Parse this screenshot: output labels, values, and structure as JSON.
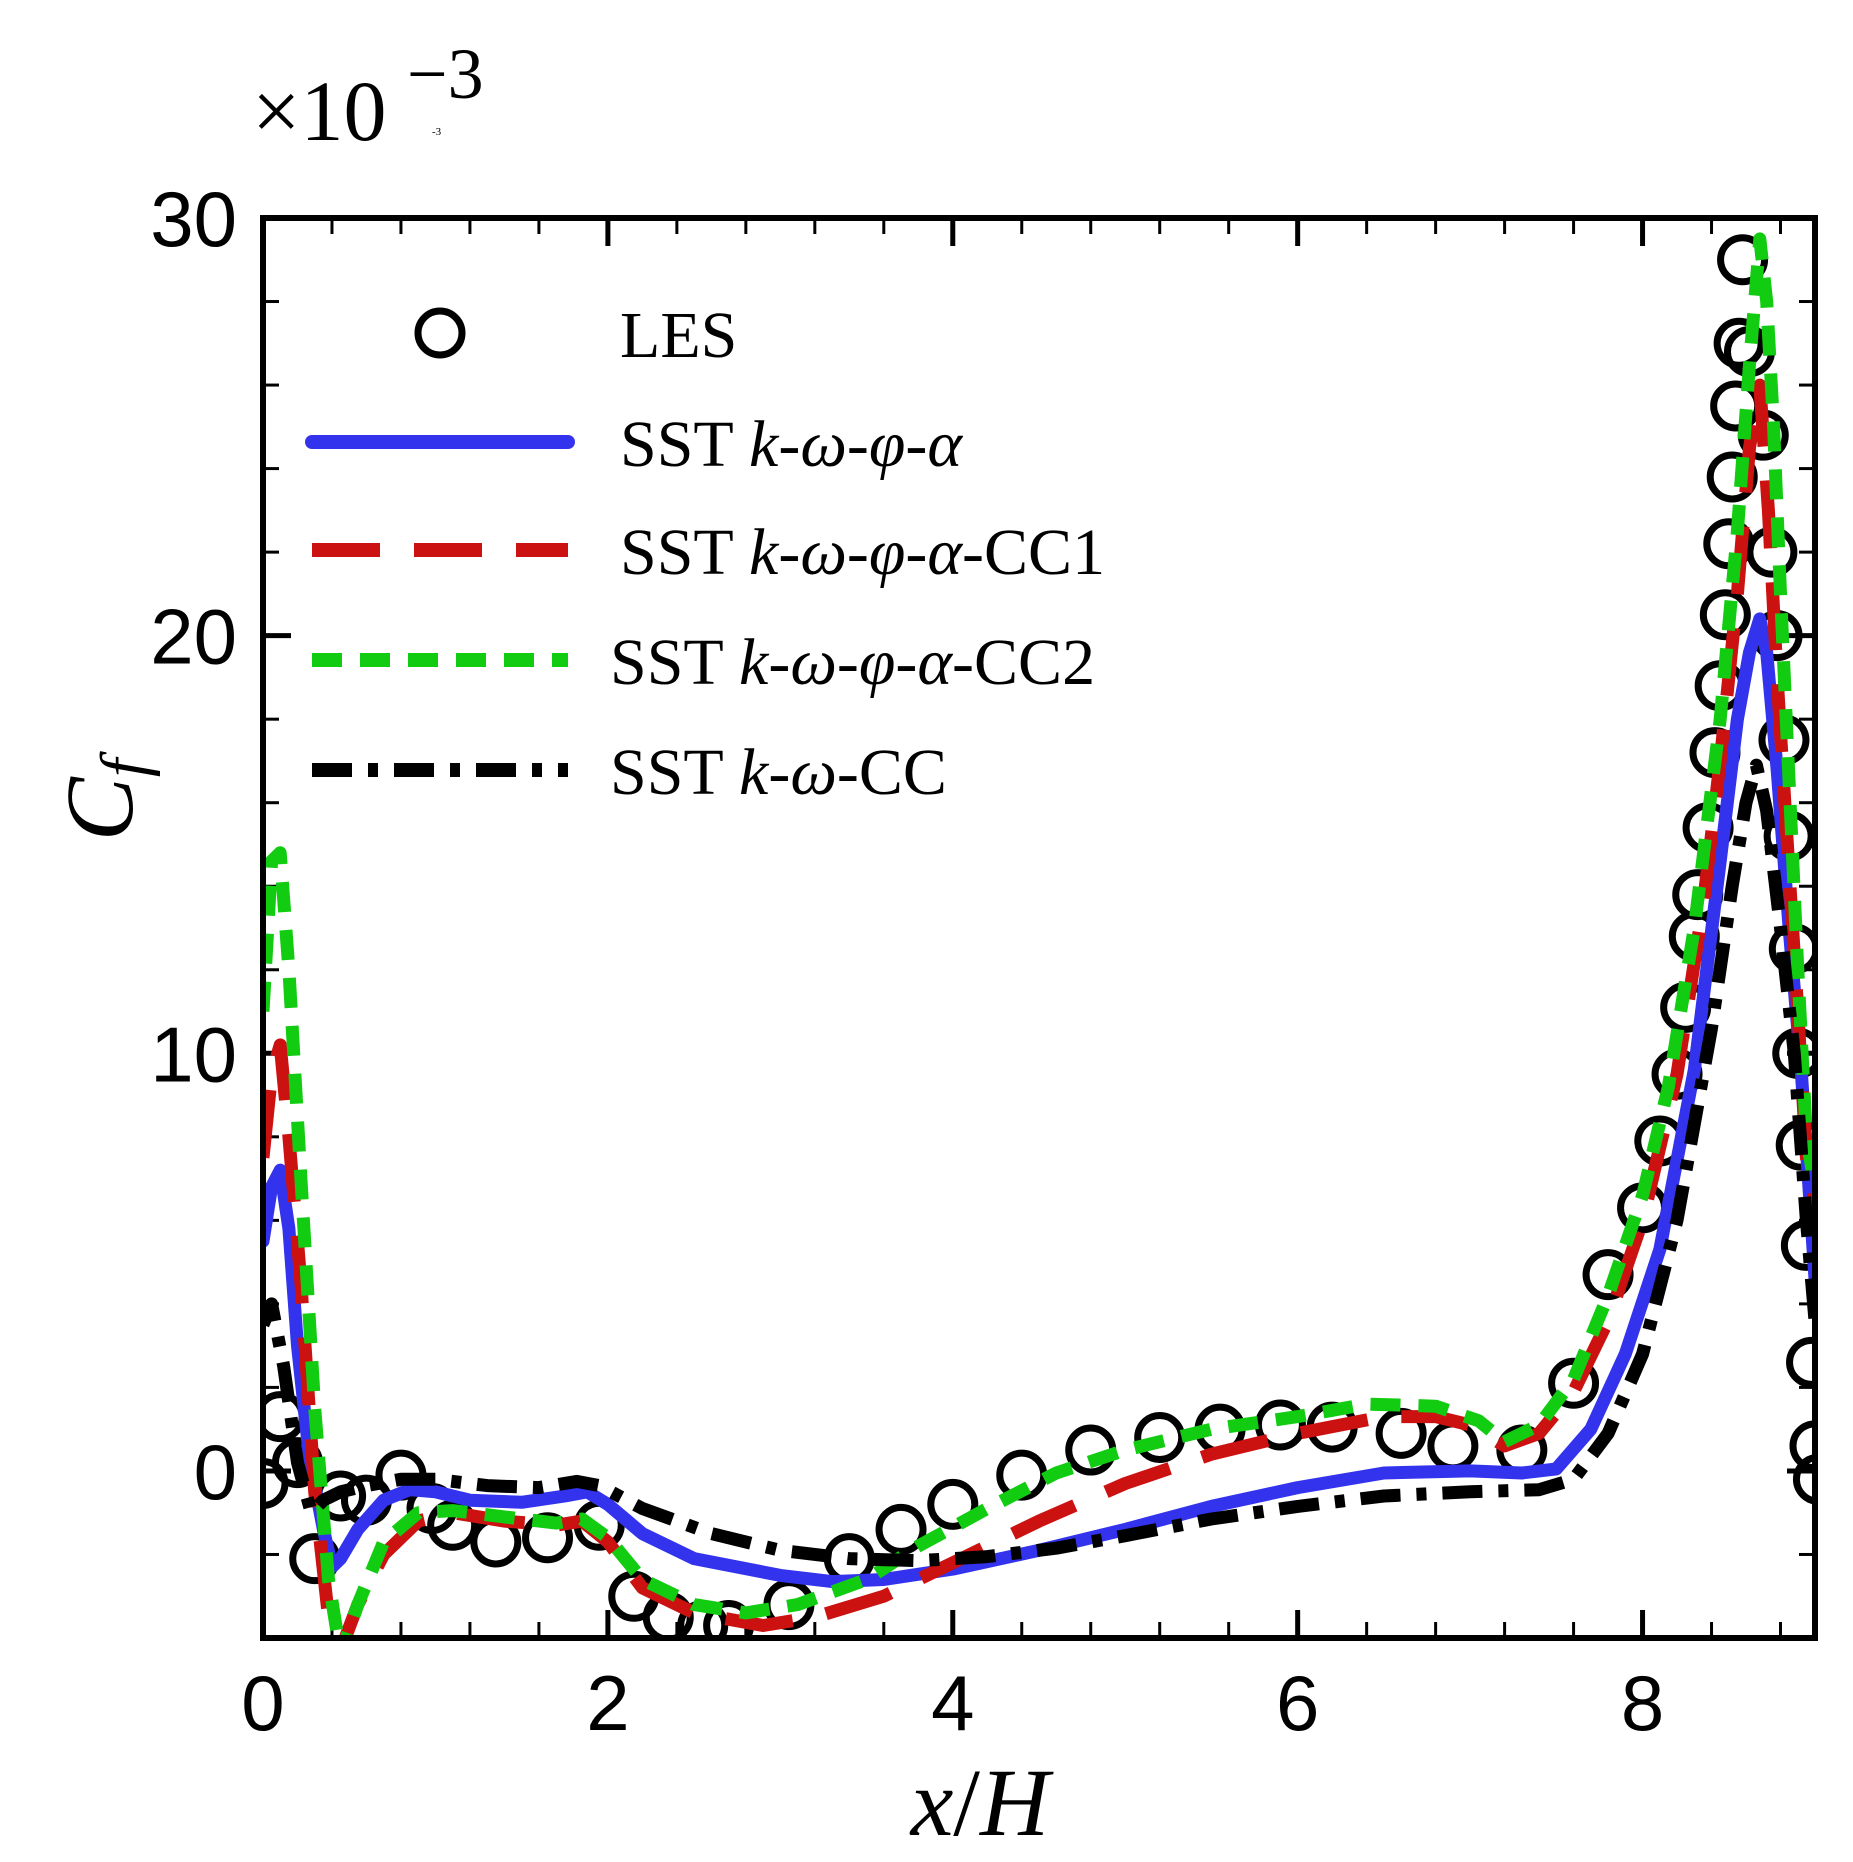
{
  "chart_data": {
    "type": "line",
    "multiplier": {
      "prefix": "×10",
      "exponent": "−3",
      "tiny": "-3"
    },
    "xlabel": {
      "italic_x": "x",
      "slash": "/",
      "italic_h": "H"
    },
    "ylabel": {
      "main": "C",
      "sub": "f"
    },
    "xlim": [
      0,
      9
    ],
    "ylim": [
      -4,
      30
    ],
    "xticks": [
      0,
      2,
      4,
      6,
      8
    ],
    "yticks": [
      0,
      10,
      20,
      30
    ],
    "xtick_labels": [
      "0",
      "2",
      "4",
      "6",
      "8"
    ],
    "ytick_labels": [
      "0",
      "10",
      "20",
      "30"
    ],
    "legend_position": "top-left",
    "series": [
      {
        "name": "LES",
        "legend": {
          "plain": "LES",
          "italic": "",
          "suffix": ""
        },
        "color": "#000000",
        "style": "markers",
        "points": [
          [
            0.0,
            -0.3
          ],
          [
            0.1,
            1.3
          ],
          [
            0.2,
            0.2
          ],
          [
            0.3,
            -2.1
          ],
          [
            0.45,
            -0.6
          ],
          [
            0.6,
            -0.7
          ],
          [
            0.8,
            -0.1
          ],
          [
            0.98,
            -0.9
          ],
          [
            1.1,
            -1.3
          ],
          [
            1.35,
            -1.7
          ],
          [
            1.65,
            -1.6
          ],
          [
            1.95,
            -1.3
          ],
          [
            2.15,
            -3.0
          ],
          [
            2.35,
            -3.5
          ],
          [
            2.55,
            -3.7
          ],
          [
            2.7,
            -3.7
          ],
          [
            3.05,
            -3.2
          ],
          [
            3.4,
            -2.1
          ],
          [
            3.7,
            -1.4
          ],
          [
            4.0,
            -0.8
          ],
          [
            4.4,
            -0.1
          ],
          [
            4.8,
            0.5
          ],
          [
            5.2,
            0.8
          ],
          [
            5.55,
            1.0
          ],
          [
            5.9,
            1.1
          ],
          [
            6.2,
            1.05
          ],
          [
            6.6,
            0.9
          ],
          [
            6.9,
            0.6
          ],
          [
            7.3,
            0.5
          ],
          [
            7.6,
            2.1
          ],
          [
            7.8,
            4.7
          ],
          [
            8.0,
            6.3
          ],
          [
            8.1,
            7.9
          ],
          [
            8.2,
            9.5
          ],
          [
            8.25,
            11.1
          ],
          [
            8.3,
            12.8
          ],
          [
            8.32,
            13.8
          ],
          [
            8.38,
            15.4
          ],
          [
            8.42,
            17.2
          ],
          [
            8.45,
            18.8
          ],
          [
            8.48,
            20.5
          ],
          [
            8.5,
            22.2
          ],
          [
            8.52,
            23.8
          ],
          [
            8.54,
            25.5
          ],
          [
            8.56,
            27.0
          ],
          [
            8.58,
            29.0
          ],
          [
            8.62,
            26.8
          ],
          [
            8.7,
            24.8
          ],
          [
            8.75,
            22.0
          ],
          [
            8.78,
            20.0
          ],
          [
            8.82,
            17.5
          ],
          [
            8.85,
            15.2
          ],
          [
            8.88,
            12.5
          ],
          [
            8.9,
            10.0
          ],
          [
            8.92,
            7.8
          ],
          [
            8.95,
            5.4
          ],
          [
            8.98,
            2.6
          ],
          [
            9.0,
            0.6
          ],
          [
            9.02,
            -0.2
          ]
        ]
      },
      {
        "name": "SST k-ω-φ-α",
        "legend": {
          "plain": "SST ",
          "italic": "k-ω-φ-α",
          "suffix": ""
        },
        "color": "#3333ee",
        "style": "solid",
        "points": [
          [
            0.0,
            5.5
          ],
          [
            0.05,
            6.8
          ],
          [
            0.1,
            7.2
          ],
          [
            0.15,
            5.8
          ],
          [
            0.2,
            3.0
          ],
          [
            0.27,
            0.3
          ],
          [
            0.35,
            -1.4
          ],
          [
            0.4,
            -2.3
          ],
          [
            0.45,
            -2.1
          ],
          [
            0.55,
            -1.4
          ],
          [
            0.7,
            -0.7
          ],
          [
            0.85,
            -0.45
          ],
          [
            1.0,
            -0.5
          ],
          [
            1.2,
            -0.7
          ],
          [
            1.5,
            -0.75
          ],
          [
            1.75,
            -0.6
          ],
          [
            1.88,
            -0.5
          ],
          [
            2.0,
            -0.8
          ],
          [
            2.2,
            -1.5
          ],
          [
            2.5,
            -2.1
          ],
          [
            3.0,
            -2.5
          ],
          [
            3.3,
            -2.65
          ],
          [
            3.6,
            -2.6
          ],
          [
            4.0,
            -2.35
          ],
          [
            4.5,
            -1.9
          ],
          [
            5.0,
            -1.4
          ],
          [
            5.5,
            -0.85
          ],
          [
            6.0,
            -0.4
          ],
          [
            6.5,
            -0.05
          ],
          [
            7.0,
            0.0
          ],
          [
            7.3,
            -0.05
          ],
          [
            7.5,
            0.05
          ],
          [
            7.7,
            1.0
          ],
          [
            7.9,
            2.8
          ],
          [
            8.1,
            5.3
          ],
          [
            8.3,
            9.6
          ],
          [
            8.45,
            14.6
          ],
          [
            8.55,
            18.0
          ],
          [
            8.62,
            19.6
          ],
          [
            8.68,
            20.4
          ],
          [
            8.72,
            19.6
          ],
          [
            8.78,
            16.8
          ],
          [
            8.85,
            13.0
          ],
          [
            8.92,
            9.6
          ],
          [
            9.0,
            4.6
          ]
        ]
      },
      {
        "name": "SST k-ω-φ-α-CC1",
        "legend": {
          "plain": "SST ",
          "italic": "k-ω-φ-α",
          "suffix": "-CC1"
        },
        "color": "#cc1111",
        "style": "longdash",
        "points": [
          [
            0.0,
            7.5
          ],
          [
            0.05,
            9.5
          ],
          [
            0.1,
            10.2
          ],
          [
            0.15,
            8.0
          ],
          [
            0.22,
            4.5
          ],
          [
            0.3,
            -0.5
          ],
          [
            0.38,
            -3.5
          ],
          [
            0.45,
            -4.3
          ],
          [
            0.55,
            -3.2
          ],
          [
            0.7,
            -2.0
          ],
          [
            0.9,
            -1.2
          ],
          [
            1.1,
            -1.0
          ],
          [
            1.4,
            -1.2
          ],
          [
            1.7,
            -1.3
          ],
          [
            1.85,
            -1.2
          ],
          [
            2.0,
            -1.7
          ],
          [
            2.2,
            -2.8
          ],
          [
            2.5,
            -3.4
          ],
          [
            2.9,
            -3.7
          ],
          [
            3.2,
            -3.5
          ],
          [
            3.6,
            -3.0
          ],
          [
            4.0,
            -2.2
          ],
          [
            4.5,
            -1.2
          ],
          [
            5.0,
            -0.3
          ],
          [
            5.5,
            0.4
          ],
          [
            6.0,
            0.9
          ],
          [
            6.5,
            1.3
          ],
          [
            6.8,
            1.3
          ],
          [
            7.0,
            1.1
          ],
          [
            7.2,
            0.6
          ],
          [
            7.4,
            0.9
          ],
          [
            7.6,
            1.9
          ],
          [
            7.8,
            3.6
          ],
          [
            8.0,
            6.0
          ],
          [
            8.2,
            9.5
          ],
          [
            8.35,
            13.5
          ],
          [
            8.45,
            17.0
          ],
          [
            8.55,
            21.0
          ],
          [
            8.62,
            24.5
          ],
          [
            8.68,
            26.0
          ],
          [
            8.73,
            23.0
          ],
          [
            8.78,
            19.0
          ],
          [
            8.84,
            15.0
          ],
          [
            8.9,
            11.0
          ],
          [
            8.95,
            7.5
          ],
          [
            9.0,
            6.5
          ]
        ]
      },
      {
        "name": "SST k-ω-φ-α-CC2",
        "legend": {
          "plain": "SST ",
          "italic": "k-ω-φ-α",
          "suffix": "-CC2"
        },
        "color": "#11cc11",
        "style": "shortdash",
        "points": [
          [
            0.0,
            11.0
          ],
          [
            0.05,
            14.6
          ],
          [
            0.1,
            14.8
          ],
          [
            0.15,
            12.0
          ],
          [
            0.22,
            7.0
          ],
          [
            0.3,
            1.5
          ],
          [
            0.38,
            -2.6
          ],
          [
            0.45,
            -4.4
          ],
          [
            0.55,
            -3.2
          ],
          [
            0.7,
            -1.7
          ],
          [
            0.9,
            -1.0
          ],
          [
            1.1,
            -0.95
          ],
          [
            1.4,
            -1.1
          ],
          [
            1.7,
            -1.25
          ],
          [
            1.85,
            -1.15
          ],
          [
            2.0,
            -1.6
          ],
          [
            2.2,
            -2.6
          ],
          [
            2.5,
            -3.2
          ],
          [
            2.8,
            -3.4
          ],
          [
            3.1,
            -3.2
          ],
          [
            3.5,
            -2.6
          ],
          [
            3.8,
            -1.8
          ],
          [
            4.2,
            -0.9
          ],
          [
            4.6,
            -0.05
          ],
          [
            5.0,
            0.5
          ],
          [
            5.5,
            1.0
          ],
          [
            6.0,
            1.3
          ],
          [
            6.4,
            1.6
          ],
          [
            6.8,
            1.55
          ],
          [
            7.05,
            1.2
          ],
          [
            7.2,
            0.7
          ],
          [
            7.4,
            1.1
          ],
          [
            7.6,
            2.2
          ],
          [
            7.8,
            4.2
          ],
          [
            8.0,
            6.6
          ],
          [
            8.15,
            9.2
          ],
          [
            8.3,
            13.0
          ],
          [
            8.45,
            18.0
          ],
          [
            8.55,
            22.5
          ],
          [
            8.62,
            26.5
          ],
          [
            8.68,
            29.5
          ],
          [
            8.72,
            28.0
          ],
          [
            8.76,
            25.0
          ],
          [
            8.8,
            21.0
          ],
          [
            8.85,
            16.5
          ],
          [
            8.9,
            12.0
          ],
          [
            8.95,
            8.0
          ],
          [
            9.0,
            6.8
          ]
        ]
      },
      {
        "name": "SST k-ω-CC",
        "legend": {
          "plain": "SST ",
          "italic": "k-ω",
          "suffix": "-CC"
        },
        "color": "#000000",
        "style": "dashdot",
        "points": [
          [
            0.0,
            3.5
          ],
          [
            0.05,
            4.0
          ],
          [
            0.12,
            2.5
          ],
          [
            0.2,
            0.2
          ],
          [
            0.28,
            -1.0
          ],
          [
            0.35,
            -0.7
          ],
          [
            0.45,
            -0.5
          ],
          [
            0.6,
            -0.35
          ],
          [
            0.8,
            -0.2
          ],
          [
            1.0,
            -0.2
          ],
          [
            1.3,
            -0.35
          ],
          [
            1.6,
            -0.4
          ],
          [
            1.82,
            -0.25
          ],
          [
            1.95,
            -0.35
          ],
          [
            2.2,
            -0.9
          ],
          [
            2.6,
            -1.5
          ],
          [
            3.0,
            -1.9
          ],
          [
            3.4,
            -2.1
          ],
          [
            3.8,
            -2.15
          ],
          [
            4.2,
            -2.05
          ],
          [
            4.6,
            -1.85
          ],
          [
            5.0,
            -1.55
          ],
          [
            5.5,
            -1.15
          ],
          [
            6.0,
            -0.85
          ],
          [
            6.5,
            -0.6
          ],
          [
            7.0,
            -0.5
          ],
          [
            7.4,
            -0.45
          ],
          [
            7.6,
            -0.2
          ],
          [
            7.8,
            0.9
          ],
          [
            8.0,
            2.8
          ],
          [
            8.2,
            6.0
          ],
          [
            8.4,
            10.6
          ],
          [
            8.52,
            14.0
          ],
          [
            8.6,
            16.0
          ],
          [
            8.66,
            16.9
          ],
          [
            8.72,
            15.8
          ],
          [
            8.8,
            13.0
          ],
          [
            8.88,
            10.0
          ],
          [
            8.95,
            6.0
          ],
          [
            9.0,
            3.6
          ]
        ]
      }
    ]
  }
}
